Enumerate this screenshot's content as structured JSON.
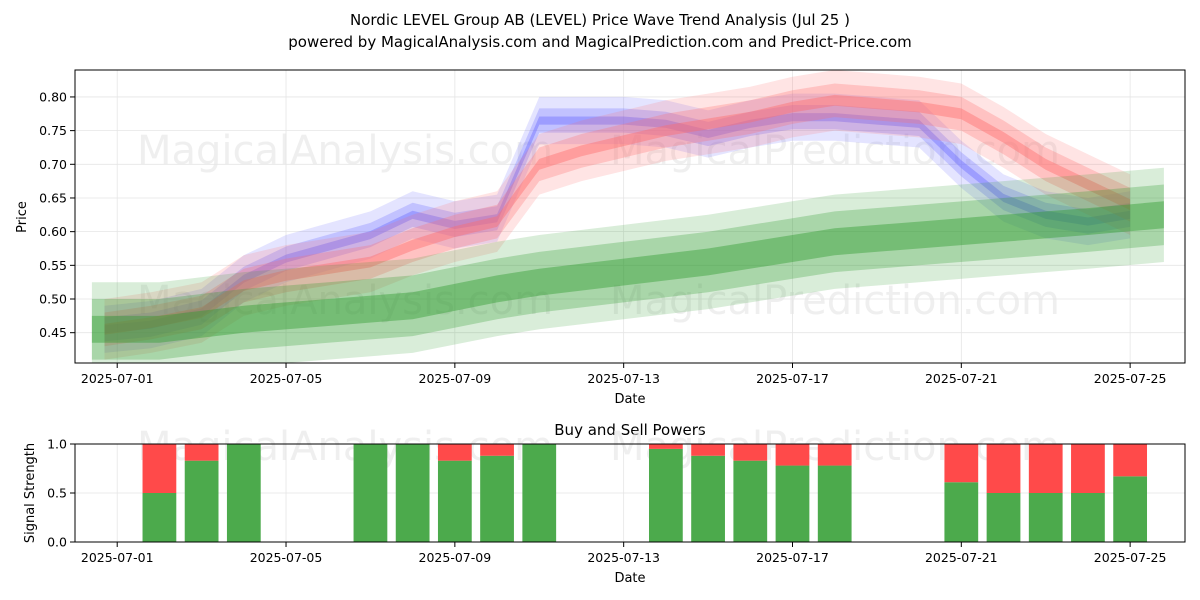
{
  "chart_data": [
    {
      "type": "area",
      "title_line1": "Nordic LEVEL Group AB (LEVEL) Price Wave Trend Analysis (Jul 25 )",
      "title_line2": "powered by MagicalAnalysis.com and MagicalPrediction.com and Predict-Price.com",
      "xlabel": "Date",
      "ylabel": "Price",
      "xlim": [
        -1.0,
        25.3
      ],
      "ylim": [
        0.405,
        0.84
      ],
      "x_ticks": [
        {
          "x": 0,
          "label": "2025-07-01"
        },
        {
          "x": 4,
          "label": "2025-07-05"
        },
        {
          "x": 8,
          "label": "2025-07-09"
        },
        {
          "x": 12,
          "label": "2025-07-13"
        },
        {
          "x": 16,
          "label": "2025-07-17"
        },
        {
          "x": 20,
          "label": "2025-07-21"
        },
        {
          "x": 24,
          "label": "2025-07-25"
        }
      ],
      "y_ticks": [
        0.45,
        0.5,
        0.55,
        0.6,
        0.65,
        0.7,
        0.75,
        0.8
      ],
      "y_tick_labels": [
        "0.45",
        "0.50",
        "0.55",
        "0.60",
        "0.65",
        "0.70",
        "0.75",
        "0.80"
      ],
      "series": [
        {
          "name": "blue wave",
          "color": "#6b6bff",
          "x": [
            -0.3,
            0.8,
            2,
            3,
            4,
            6,
            7,
            8,
            9,
            10,
            11,
            12,
            13,
            14,
            15,
            16,
            17,
            18,
            19,
            20,
            21,
            22,
            23,
            24
          ],
          "values": [
            0.455,
            0.462,
            0.48,
            0.53,
            0.56,
            0.595,
            0.625,
            0.61,
            0.62,
            0.765,
            0.765,
            0.765,
            0.76,
            0.745,
            0.76,
            0.77,
            0.77,
            0.765,
            0.76,
            0.7,
            0.65,
            0.625,
            0.615,
            0.625
          ],
          "band_halfwidths": [
            0.006,
            0.018,
            0.035
          ]
        },
        {
          "name": "red wave",
          "color": "#ff6b6b",
          "x": [
            -0.3,
            0.8,
            2,
            3,
            4,
            6,
            7,
            8,
            9,
            10,
            11,
            12,
            13,
            14,
            15,
            16,
            17,
            18,
            19,
            20,
            21,
            22,
            23,
            24
          ],
          "values": [
            0.455,
            0.465,
            0.48,
            0.52,
            0.535,
            0.555,
            0.58,
            0.6,
            0.615,
            0.7,
            0.72,
            0.735,
            0.75,
            0.76,
            0.77,
            0.785,
            0.795,
            0.79,
            0.785,
            0.775,
            0.74,
            0.7,
            0.67,
            0.64
          ],
          "band_halfwidths": [
            0.008,
            0.025,
            0.045
          ]
        },
        {
          "name": "green wave",
          "color": "#2e9a2e",
          "x": [
            -0.6,
            1,
            3,
            5,
            7,
            9,
            10,
            12,
            14,
            16,
            17,
            19,
            21,
            23,
            24.8
          ],
          "values": [
            0.455,
            0.455,
            0.47,
            0.48,
            0.49,
            0.515,
            0.525,
            0.54,
            0.555,
            0.575,
            0.585,
            0.595,
            0.605,
            0.615,
            0.625
          ],
          "band_halfwidths": [
            0.02,
            0.045,
            0.07
          ]
        }
      ],
      "watermarks": [
        "MagicalAnalysis.com",
        "MagicalPrediction.com",
        "MagicalAnalysis.com",
        "MagicalPrediction.com"
      ]
    },
    {
      "type": "bar",
      "title": "Buy and Sell Powers",
      "xlabel": "Date",
      "ylabel": "Signal Strength",
      "xlim": [
        -1.0,
        25.3
      ],
      "ylim": [
        0,
        1.0
      ],
      "x_ticks": [
        {
          "x": 0,
          "label": "2025-07-01"
        },
        {
          "x": 4,
          "label": "2025-07-05"
        },
        {
          "x": 8,
          "label": "2025-07-09"
        },
        {
          "x": 12,
          "label": "2025-07-13"
        },
        {
          "x": 16,
          "label": "2025-07-17"
        },
        {
          "x": 20,
          "label": "2025-07-21"
        },
        {
          "x": 24,
          "label": "2025-07-25"
        }
      ],
      "y_ticks": [
        0.0,
        0.5,
        1.0
      ],
      "y_tick_labels": [
        "0.0",
        "0.5",
        "1.0"
      ],
      "buy_color": "#4caa4c",
      "sell_color": "#ff4a4a",
      "bars": [
        {
          "x": 1,
          "buy": 0.5
        },
        {
          "x": 2,
          "buy": 0.83
        },
        {
          "x": 3,
          "buy": 1.0
        },
        {
          "x": 6,
          "buy": 1.0
        },
        {
          "x": 7,
          "buy": 1.0
        },
        {
          "x": 8,
          "buy": 0.83
        },
        {
          "x": 9,
          "buy": 0.88
        },
        {
          "x": 10,
          "buy": 1.0
        },
        {
          "x": 13,
          "buy": 0.95
        },
        {
          "x": 14,
          "buy": 0.88
        },
        {
          "x": 15,
          "buy": 0.83
        },
        {
          "x": 16,
          "buy": 0.78
        },
        {
          "x": 17,
          "buy": 0.78
        },
        {
          "x": 20,
          "buy": 0.61
        },
        {
          "x": 21,
          "buy": 0.5
        },
        {
          "x": 22,
          "buy": 0.5
        },
        {
          "x": 23,
          "buy": 0.5
        },
        {
          "x": 24,
          "buy": 0.67
        }
      ],
      "watermarks": [
        "MagicalAnalysis.com",
        "MagicalPrediction.com"
      ]
    }
  ]
}
